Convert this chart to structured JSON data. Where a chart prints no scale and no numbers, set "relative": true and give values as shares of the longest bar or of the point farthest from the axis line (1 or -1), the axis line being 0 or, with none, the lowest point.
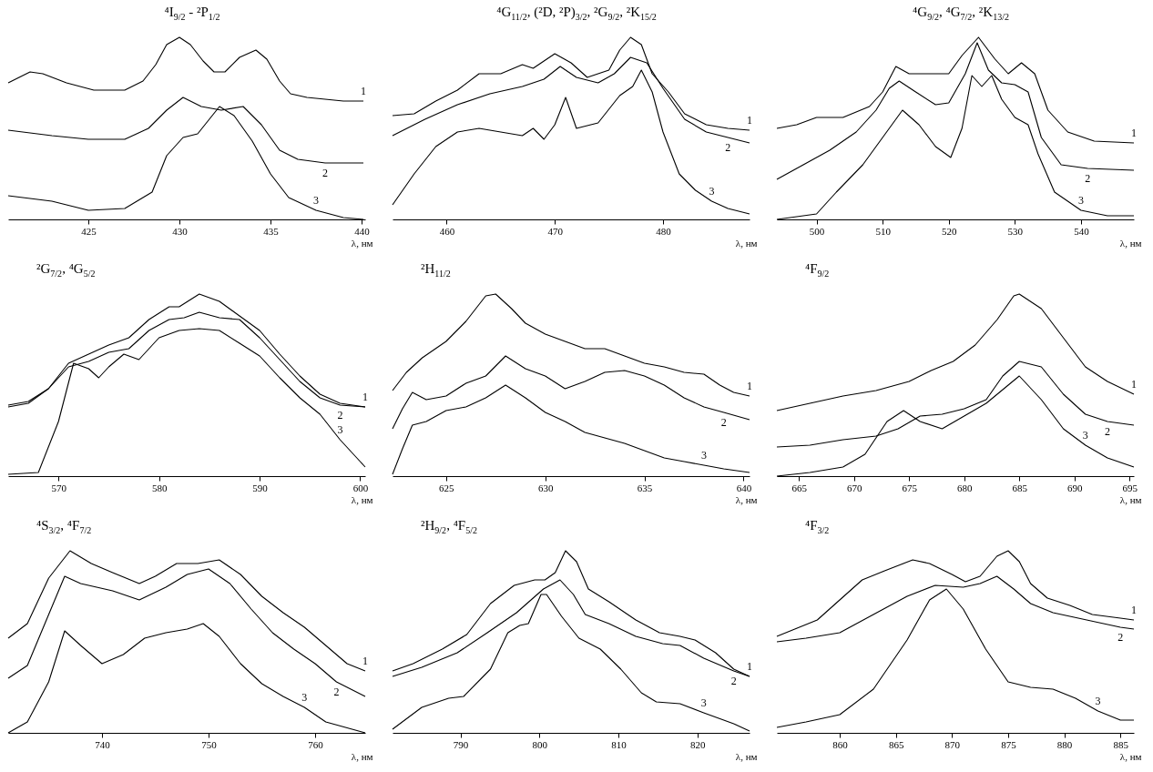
{
  "chart_data": [
    {
      "type": "line",
      "title": "⁴I$_{9/2}$ - ²P$_{1/2}$",
      "xlabel": "λ, нм",
      "xlim": [
        420.6,
        440.2
      ],
      "xticks": [
        425,
        430,
        435,
        440
      ],
      "relative": true,
      "series": [
        {
          "name": "1",
          "color": "#000000",
          "x": [
            420.6,
            421.2,
            421.8,
            422.5,
            423.8,
            425.3,
            427,
            428,
            428.7,
            429.3,
            430,
            430.6,
            431.3,
            431.9,
            432.5,
            433.3,
            434.2,
            434.8,
            435.5,
            436.1,
            437,
            438,
            439,
            440.1
          ],
          "values": [
            0.75,
            0.78,
            0.81,
            0.8,
            0.75,
            0.71,
            0.71,
            0.76,
            0.85,
            0.96,
            1.0,
            0.96,
            0.87,
            0.81,
            0.81,
            0.89,
            0.93,
            0.88,
            0.76,
            0.69,
            0.67,
            0.66,
            0.65,
            0.65
          ]
        },
        {
          "name": "2",
          "color": "#000000",
          "x": [
            420.6,
            423,
            425,
            427,
            428.3,
            429.3,
            430.2,
            431.2,
            432.3,
            433.5,
            434.5,
            435.5,
            436.5,
            438,
            440.1
          ],
          "values": [
            0.49,
            0.46,
            0.44,
            0.44,
            0.5,
            0.6,
            0.67,
            0.62,
            0.6,
            0.62,
            0.52,
            0.38,
            0.33,
            0.31,
            0.31
          ]
        },
        {
          "name": "3",
          "color": "#000000",
          "x": [
            420.6,
            423,
            425,
            427,
            428.5,
            429.3,
            430.2,
            431,
            432.2,
            433,
            434,
            435,
            436,
            437.5,
            439,
            440.1
          ],
          "values": [
            0.13,
            0.1,
            0.05,
            0.06,
            0.15,
            0.35,
            0.45,
            0.47,
            0.62,
            0.57,
            0.43,
            0.25,
            0.12,
            0.05,
            0.01,
            0.0
          ]
        }
      ]
    },
    {
      "type": "line",
      "title": "⁴G$_{11/2}$, (²D, ²P)$_{3/2}$, ²G$_{9/2}$, ²K$_{15/2}$",
      "xlabel": "λ, нм",
      "xlim": [
        455,
        488
      ],
      "xticks": [
        460,
        470,
        480
      ],
      "relative": true,
      "series": [
        {
          "name": "1",
          "color": "#000000",
          "x": [
            455,
            457,
            459,
            461,
            463,
            465,
            467,
            468,
            470,
            471.5,
            473,
            475,
            476,
            477,
            478,
            479,
            480.5,
            482,
            484,
            486,
            488
          ],
          "values": [
            0.57,
            0.58,
            0.65,
            0.71,
            0.8,
            0.8,
            0.85,
            0.83,
            0.91,
            0.86,
            0.78,
            0.82,
            0.93,
            1.0,
            0.96,
            0.8,
            0.7,
            0.58,
            0.52,
            0.5,
            0.49
          ]
        },
        {
          "name": "2",
          "color": "#000000",
          "x": [
            455,
            458,
            461,
            464,
            467,
            469,
            470.5,
            472,
            474,
            475.5,
            477,
            478.5,
            480,
            482,
            484,
            486,
            488
          ],
          "values": [
            0.46,
            0.55,
            0.63,
            0.69,
            0.73,
            0.77,
            0.84,
            0.78,
            0.75,
            0.8,
            0.89,
            0.86,
            0.72,
            0.55,
            0.48,
            0.45,
            0.42
          ]
        },
        {
          "name": "3",
          "color": "#000000",
          "x": [
            455,
            457,
            459,
            461,
            463,
            465,
            467,
            468,
            469,
            470,
            471,
            472,
            474,
            476,
            477.2,
            478,
            479,
            480,
            481.5,
            483,
            484.5,
            486,
            488
          ],
          "values": [
            0.08,
            0.25,
            0.4,
            0.48,
            0.5,
            0.48,
            0.46,
            0.5,
            0.44,
            0.52,
            0.67,
            0.5,
            0.53,
            0.68,
            0.73,
            0.82,
            0.7,
            0.48,
            0.25,
            0.16,
            0.1,
            0.06,
            0.03
          ]
        }
      ]
    },
    {
      "type": "line",
      "title": "⁴G$_{9/2}$, ⁴G$_{7/2}$, ²K$_{13/2}$",
      "xlabel": "λ, нм",
      "xlim": [
        494,
        548
      ],
      "xticks": [
        500,
        510,
        520,
        530,
        540
      ],
      "relative": true,
      "series": [
        {
          "name": "1",
          "color": "#000000",
          "x": [
            494,
            497,
            500,
            504,
            508,
            510,
            512,
            514,
            517,
            520,
            522,
            524.5,
            527,
            529,
            531,
            533,
            535,
            538,
            542,
            548
          ],
          "values": [
            0.5,
            0.52,
            0.56,
            0.56,
            0.62,
            0.7,
            0.84,
            0.8,
            0.8,
            0.8,
            0.9,
            1.0,
            0.88,
            0.8,
            0.86,
            0.8,
            0.6,
            0.48,
            0.43,
            0.42
          ]
        },
        {
          "name": "2",
          "color": "#000000",
          "x": [
            494,
            498,
            502,
            506,
            509,
            511,
            512.5,
            515,
            518,
            520,
            522.5,
            524.3,
            526,
            528,
            530,
            532,
            534,
            537,
            541,
            548
          ],
          "values": [
            0.22,
            0.3,
            0.38,
            0.48,
            0.6,
            0.72,
            0.76,
            0.7,
            0.63,
            0.64,
            0.8,
            0.97,
            0.82,
            0.75,
            0.74,
            0.7,
            0.45,
            0.3,
            0.28,
            0.27
          ]
        },
        {
          "name": "3",
          "color": "#000000",
          "x": [
            494,
            500,
            503,
            507,
            510,
            513,
            515.5,
            518,
            520.3,
            522,
            523.5,
            525,
            526.5,
            528,
            530,
            532,
            533.5,
            536,
            540,
            544,
            548
          ],
          "values": [
            0.0,
            0.03,
            0.15,
            0.3,
            0.45,
            0.6,
            0.52,
            0.4,
            0.34,
            0.5,
            0.79,
            0.73,
            0.79,
            0.66,
            0.56,
            0.52,
            0.36,
            0.15,
            0.05,
            0.02,
            0.02
          ]
        }
      ]
    },
    {
      "type": "line",
      "title": "²G$_{7/2}$, ⁴G$_{5/2}$",
      "xlabel": "λ, нм",
      "xlim": [
        565,
        600.5
      ],
      "xticks": [
        570,
        580,
        590,
        600
      ],
      "relative": true,
      "series": [
        {
          "name": "1",
          "color": "#000000",
          "x": [
            565,
            567,
            569,
            571,
            573,
            575,
            577,
            579,
            581,
            582,
            584,
            586,
            588,
            590,
            592,
            594,
            596,
            598,
            600.5
          ],
          "values": [
            0.39,
            0.41,
            0.48,
            0.62,
            0.67,
            0.72,
            0.76,
            0.86,
            0.93,
            0.93,
            1.0,
            0.96,
            0.88,
            0.8,
            0.67,
            0.55,
            0.45,
            0.4,
            0.38
          ]
        },
        {
          "name": "2",
          "color": "#000000",
          "x": [
            565,
            567,
            569,
            571,
            573,
            575,
            577,
            579,
            581,
            582.5,
            584,
            586,
            588,
            590,
            592,
            594,
            596,
            598,
            600.5
          ],
          "values": [
            0.38,
            0.4,
            0.48,
            0.6,
            0.63,
            0.68,
            0.7,
            0.8,
            0.86,
            0.87,
            0.9,
            0.87,
            0.86,
            0.76,
            0.64,
            0.52,
            0.43,
            0.39,
            0.38
          ]
        },
        {
          "name": "3",
          "color": "#000000",
          "x": [
            565,
            568,
            570,
            571.5,
            573,
            574,
            575,
            576.5,
            578,
            580,
            582,
            584,
            586,
            588,
            590,
            592,
            594,
            596,
            598,
            600,
            600.5
          ],
          "values": [
            0.01,
            0.02,
            0.3,
            0.62,
            0.59,
            0.54,
            0.6,
            0.67,
            0.64,
            0.76,
            0.8,
            0.81,
            0.8,
            0.73,
            0.66,
            0.54,
            0.43,
            0.34,
            0.2,
            0.08,
            0.05
          ]
        }
      ]
    },
    {
      "type": "line",
      "title": "²H$_{11/2}$",
      "xlabel": "λ, нм",
      "xlim": [
        622.3,
        640.3
      ],
      "xticks": [
        625,
        630,
        635,
        640
      ],
      "relative": true,
      "series": [
        {
          "name": "1",
          "color": "#000000",
          "x": [
            622.3,
            623,
            623.8,
            625,
            626,
            627,
            627.5,
            628.3,
            629,
            630,
            631,
            632,
            633,
            634,
            635,
            636,
            637,
            638,
            638.8,
            639.5,
            640.3
          ],
          "values": [
            0.47,
            0.57,
            0.65,
            0.74,
            0.85,
            0.99,
            1.0,
            0.92,
            0.84,
            0.78,
            0.74,
            0.7,
            0.7,
            0.66,
            0.62,
            0.6,
            0.57,
            0.56,
            0.5,
            0.46,
            0.44
          ]
        },
        {
          "name": "2",
          "color": "#000000",
          "x": [
            622.3,
            622.8,
            623.3,
            624,
            625,
            626,
            627,
            628,
            629,
            630,
            631,
            632,
            633,
            634,
            635,
            636,
            637,
            638,
            639,
            640.3
          ],
          "values": [
            0.26,
            0.37,
            0.46,
            0.42,
            0.44,
            0.51,
            0.55,
            0.66,
            0.59,
            0.55,
            0.48,
            0.52,
            0.57,
            0.58,
            0.55,
            0.5,
            0.43,
            0.38,
            0.35,
            0.31
          ]
        },
        {
          "name": "3",
          "color": "#000000",
          "x": [
            622.3,
            622.8,
            623.3,
            624,
            625,
            626,
            627,
            628,
            629,
            630,
            631,
            632,
            633,
            634,
            635,
            636,
            637,
            638,
            639,
            640.3
          ],
          "values": [
            0.01,
            0.15,
            0.28,
            0.3,
            0.36,
            0.38,
            0.43,
            0.5,
            0.43,
            0.35,
            0.3,
            0.24,
            0.21,
            0.18,
            0.14,
            0.1,
            0.08,
            0.06,
            0.04,
            0.02
          ]
        }
      ]
    },
    {
      "type": "line",
      "title": "⁴F$_{9/2}$",
      "xlabel": "λ, нм",
      "xlim": [
        663,
        695.4
      ],
      "xticks": [
        665,
        670,
        675,
        680,
        685,
        690,
        695
      ],
      "relative": true,
      "series": [
        {
          "name": "1",
          "color": "#000000",
          "x": [
            663,
            666,
            669,
            672,
            675,
            677,
            679,
            681,
            683,
            684.5,
            685,
            687,
            689,
            691,
            693,
            695.4
          ],
          "values": [
            0.36,
            0.4,
            0.44,
            0.47,
            0.52,
            0.58,
            0.63,
            0.72,
            0.86,
            0.99,
            1.0,
            0.92,
            0.76,
            0.6,
            0.52,
            0.45
          ]
        },
        {
          "name": "2",
          "color": "#000000",
          "x": [
            663,
            666,
            669,
            672,
            674,
            676,
            678,
            680,
            682,
            683.5,
            685,
            687,
            689,
            691,
            693,
            695.4
          ],
          "values": [
            0.16,
            0.17,
            0.2,
            0.22,
            0.26,
            0.33,
            0.34,
            0.37,
            0.42,
            0.55,
            0.63,
            0.6,
            0.45,
            0.34,
            0.3,
            0.28
          ]
        },
        {
          "name": "3",
          "color": "#000000",
          "x": [
            663,
            666,
            669,
            671,
            673,
            674.5,
            676,
            678,
            680,
            682,
            684,
            685,
            687,
            689,
            691,
            693,
            695.4
          ],
          "values": [
            0.0,
            0.02,
            0.05,
            0.12,
            0.3,
            0.36,
            0.3,
            0.26,
            0.33,
            0.4,
            0.5,
            0.55,
            0.42,
            0.26,
            0.17,
            0.1,
            0.05
          ]
        }
      ]
    },
    {
      "type": "line",
      "title": "⁴S$_{3/2}$, ⁴F$_{7/2}$",
      "xlabel": "λ, нм",
      "xlim": [
        731.2,
        764.7
      ],
      "xticks": [
        740,
        750,
        760
      ],
      "relative": true,
      "series": [
        {
          "name": "1",
          "color": "#000000",
          "x": [
            731.2,
            733,
            735,
            737,
            739,
            741,
            743.5,
            745,
            747,
            749,
            751,
            753,
            755,
            757,
            759,
            761,
            763,
            764.7
          ],
          "values": [
            0.52,
            0.6,
            0.85,
            1.0,
            0.93,
            0.88,
            0.82,
            0.86,
            0.93,
            0.93,
            0.95,
            0.87,
            0.75,
            0.66,
            0.58,
            0.48,
            0.38,
            0.34
          ]
        },
        {
          "name": "2",
          "color": "#000000",
          "x": [
            731.2,
            733,
            735,
            736.5,
            738,
            741,
            743.5,
            746,
            748,
            750,
            752,
            754,
            756,
            758,
            760,
            762,
            764.7
          ],
          "values": [
            0.3,
            0.37,
            0.65,
            0.86,
            0.82,
            0.78,
            0.73,
            0.8,
            0.87,
            0.9,
            0.82,
            0.68,
            0.55,
            0.46,
            0.38,
            0.28,
            0.2
          ]
        },
        {
          "name": "3",
          "color": "#000000",
          "x": [
            731.2,
            733,
            735,
            736.5,
            738,
            740,
            742,
            744,
            746,
            748,
            749.5,
            751,
            753,
            755,
            757,
            759,
            761,
            764.7
          ],
          "values": [
            0.0,
            0.06,
            0.28,
            0.56,
            0.48,
            0.38,
            0.43,
            0.52,
            0.55,
            0.57,
            0.6,
            0.53,
            0.38,
            0.27,
            0.2,
            0.14,
            0.06,
            0.0
          ]
        }
      ]
    },
    {
      "type": "line",
      "title": "²H$_{9/2}$, ⁴F$_{5/2}$",
      "xlabel": "λ, нм",
      "xlim": [
        781.4,
        826.6
      ],
      "xticks": [
        790,
        800,
        810,
        820
      ],
      "relative": true,
      "series": [
        {
          "name": "1",
          "color": "#000000",
          "x": [
            781.4,
            784,
            787.7,
            790.8,
            793.8,
            796.8,
            799.4,
            800.7,
            802,
            803.3,
            804.7,
            806.2,
            808.8,
            812.2,
            815.2,
            817.8,
            819.7,
            822.3,
            824.6,
            826.6
          ],
          "values": [
            0.34,
            0.38,
            0.46,
            0.54,
            0.71,
            0.81,
            0.84,
            0.84,
            0.88,
            1.0,
            0.94,
            0.79,
            0.72,
            0.62,
            0.55,
            0.53,
            0.51,
            0.44,
            0.35,
            0.31
          ]
        },
        {
          "name": "2",
          "color": "#000000",
          "x": [
            781.4,
            785.1,
            789.6,
            793.4,
            797.1,
            800.5,
            802.6,
            804.3,
            805.8,
            808.8,
            812.2,
            815.6,
            817.8,
            820.8,
            824.6,
            826.6
          ],
          "values": [
            0.31,
            0.36,
            0.44,
            0.55,
            0.66,
            0.79,
            0.84,
            0.76,
            0.65,
            0.6,
            0.53,
            0.49,
            0.48,
            0.41,
            0.34,
            0.31
          ]
        },
        {
          "name": "3",
          "color": "#000000",
          "x": [
            781.4,
            785.1,
            788.5,
            790.4,
            793.8,
            796,
            797.5,
            798.6,
            800.2,
            800.9,
            802.8,
            805,
            807.7,
            810.3,
            812.9,
            814.8,
            817.8,
            820.8,
            824.6,
            826.6
          ],
          "values": [
            0.02,
            0.14,
            0.19,
            0.2,
            0.35,
            0.55,
            0.59,
            0.6,
            0.76,
            0.76,
            0.64,
            0.52,
            0.46,
            0.35,
            0.22,
            0.17,
            0.16,
            0.11,
            0.05,
            0.01
          ]
        }
      ]
    },
    {
      "type": "line",
      "title": "⁴F$_{3/2}$",
      "xlabel": "λ, нм",
      "xlim": [
        854.4,
        886.2
      ],
      "xticks": [
        860,
        865,
        870,
        875,
        880,
        885
      ],
      "relative": true,
      "series": [
        {
          "name": "1",
          "color": "#000000",
          "x": [
            854.4,
            856,
            858,
            860,
            862,
            864,
            866.5,
            868,
            870,
            871.2,
            872.5,
            874,
            875,
            876,
            877,
            878.5,
            880.5,
            882.5,
            885,
            886.2
          ],
          "values": [
            0.53,
            0.57,
            0.62,
            0.73,
            0.84,
            0.89,
            0.95,
            0.93,
            0.87,
            0.83,
            0.86,
            0.97,
            1.0,
            0.94,
            0.82,
            0.74,
            0.7,
            0.65,
            0.63,
            0.62
          ]
        },
        {
          "name": "2",
          "color": "#000000",
          "x": [
            854.4,
            857,
            860,
            863,
            866,
            868.5,
            871,
            872.5,
            874,
            875.5,
            877,
            879,
            882,
            885,
            886.2
          ],
          "values": [
            0.5,
            0.52,
            0.55,
            0.65,
            0.75,
            0.81,
            0.8,
            0.82,
            0.86,
            0.79,
            0.71,
            0.66,
            0.62,
            0.58,
            0.57
          ]
        },
        {
          "name": "3",
          "color": "#000000",
          "x": [
            854.4,
            857,
            860,
            863,
            866,
            868,
            869.5,
            871,
            873,
            875,
            877,
            879,
            881,
            883,
            885,
            886.2
          ],
          "values": [
            0.03,
            0.06,
            0.1,
            0.24,
            0.51,
            0.73,
            0.79,
            0.68,
            0.46,
            0.28,
            0.25,
            0.24,
            0.19,
            0.12,
            0.07,
            0.07
          ]
        }
      ]
    }
  ]
}
